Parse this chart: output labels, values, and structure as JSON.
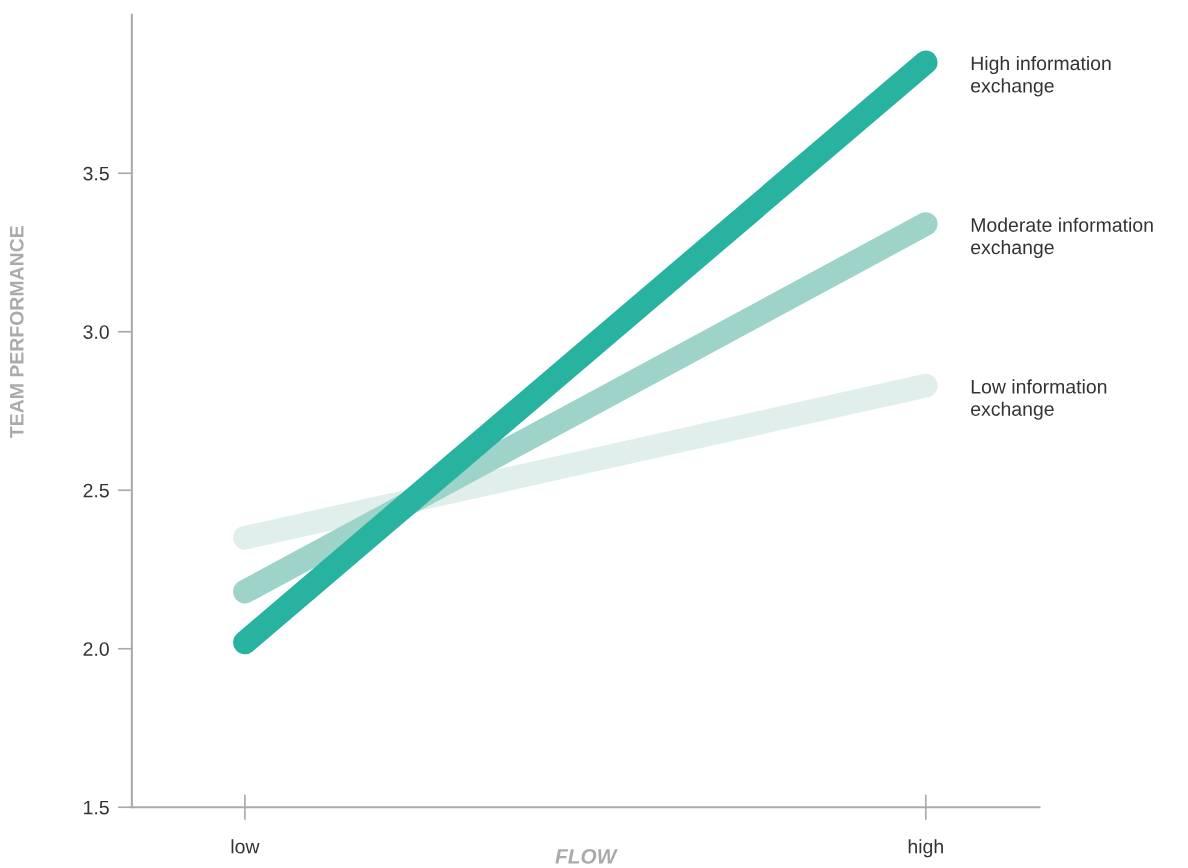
{
  "chart_data": {
    "type": "line",
    "xlabel": "FLOW",
    "ylabel": "TEAM PERFORMANCE",
    "categories": [
      "low",
      "high"
    ],
    "series": [
      {
        "name": "Low information exchange",
        "color": "#e0efec",
        "values": [
          2.35,
          2.83
        ]
      },
      {
        "name": "Moderate information exchange",
        "color": "#9dd3c8",
        "values": [
          2.18,
          3.34
        ]
      },
      {
        "name": "High information exchange",
        "color": "#27b3a0",
        "values": [
          2.02,
          3.85
        ]
      }
    ],
    "ylim": [
      1.5,
      4.0
    ],
    "yticks": [
      1.5,
      {
        "value": 2.0,
        "label": "2.0"
      },
      2.5,
      {
        "value": 3.0,
        "label": "3.0"
      },
      3.5
    ],
    "grid": false,
    "legend": false,
    "line_style": "solid"
  }
}
